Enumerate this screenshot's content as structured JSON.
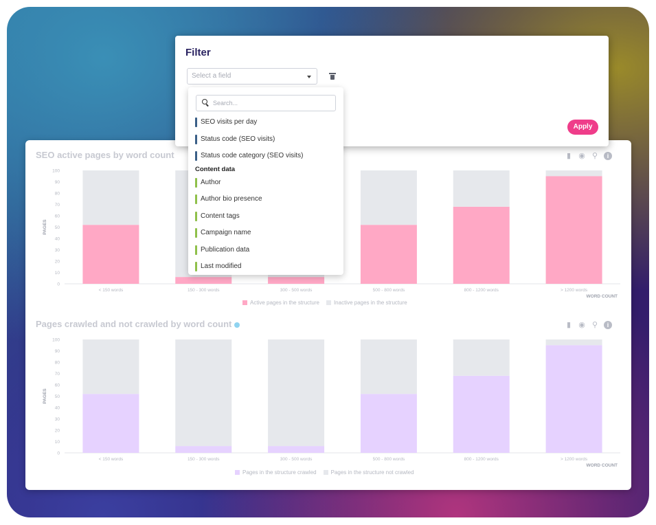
{
  "filter": {
    "title": "Filter",
    "select_placeholder": "Select a field",
    "apply_label": "Apply",
    "dropdown": {
      "search_placeholder": "Search...",
      "items_top": [
        {
          "label": "SEO visits per day",
          "color": "#3a5f87"
        },
        {
          "label": "Status code (SEO visits)",
          "color": "#3a5f87"
        },
        {
          "label": "Status code category (SEO visits)",
          "color": "#3a5f87"
        }
      ],
      "group_label": "Content data",
      "items_group": [
        {
          "label": "Author",
          "color": "#8fc04a"
        },
        {
          "label": "Author bio presence",
          "color": "#8fc04a"
        },
        {
          "label": "Content tags",
          "color": "#8fc04a"
        },
        {
          "label": "Campaign name",
          "color": "#8fc04a"
        },
        {
          "label": "Publication data",
          "color": "#8fc04a"
        },
        {
          "label": "Last modified",
          "color": "#8fc04a"
        }
      ]
    }
  },
  "chart_data": [
    {
      "type": "bar",
      "stacked": true,
      "title": "SEO active pages by word count",
      "xlabel": "WORD COUNT",
      "ylabel": "PAGES",
      "ylim": [
        0,
        100
      ],
      "yticks": [
        0,
        10,
        20,
        30,
        40,
        50,
        60,
        70,
        80,
        90,
        100
      ],
      "categories": [
        "< 150 words",
        "150 - 300 words",
        "300 - 500 words",
        "500 - 800 words",
        "800 - 1200 words",
        "> 1200 words"
      ],
      "series": [
        {
          "name": "Active pages in the structure",
          "color": "#ffa8c5",
          "values": [
            52,
            6,
            6,
            52,
            68,
            95
          ]
        },
        {
          "name": "Inactive pages in the structure",
          "color": "#e6e8ec",
          "values": [
            48,
            94,
            94,
            48,
            32,
            5
          ]
        }
      ],
      "legend": "bottom-center"
    },
    {
      "type": "bar",
      "stacked": true,
      "title": "Pages crawled and not crawled by word count",
      "xlabel": "WORD COUNT",
      "ylabel": "PAGES",
      "ylim": [
        0,
        100
      ],
      "yticks": [
        0,
        10,
        20,
        30,
        40,
        50,
        60,
        70,
        80,
        90,
        100
      ],
      "categories": [
        "< 150 words",
        "150 - 300 words",
        "300 - 500 words",
        "500 - 800 words",
        "800 - 1200 words",
        "> 1200 words"
      ],
      "series": [
        {
          "name": "Pages in the structure crawled",
          "color": "#e6d2ff",
          "values": [
            52,
            6,
            6,
            52,
            68,
            95
          ]
        },
        {
          "name": "Pages in the structure not crawled",
          "color": "#e6e8ec",
          "values": [
            48,
            94,
            94,
            48,
            32,
            5
          ]
        }
      ],
      "legend": "bottom-center"
    }
  ]
}
